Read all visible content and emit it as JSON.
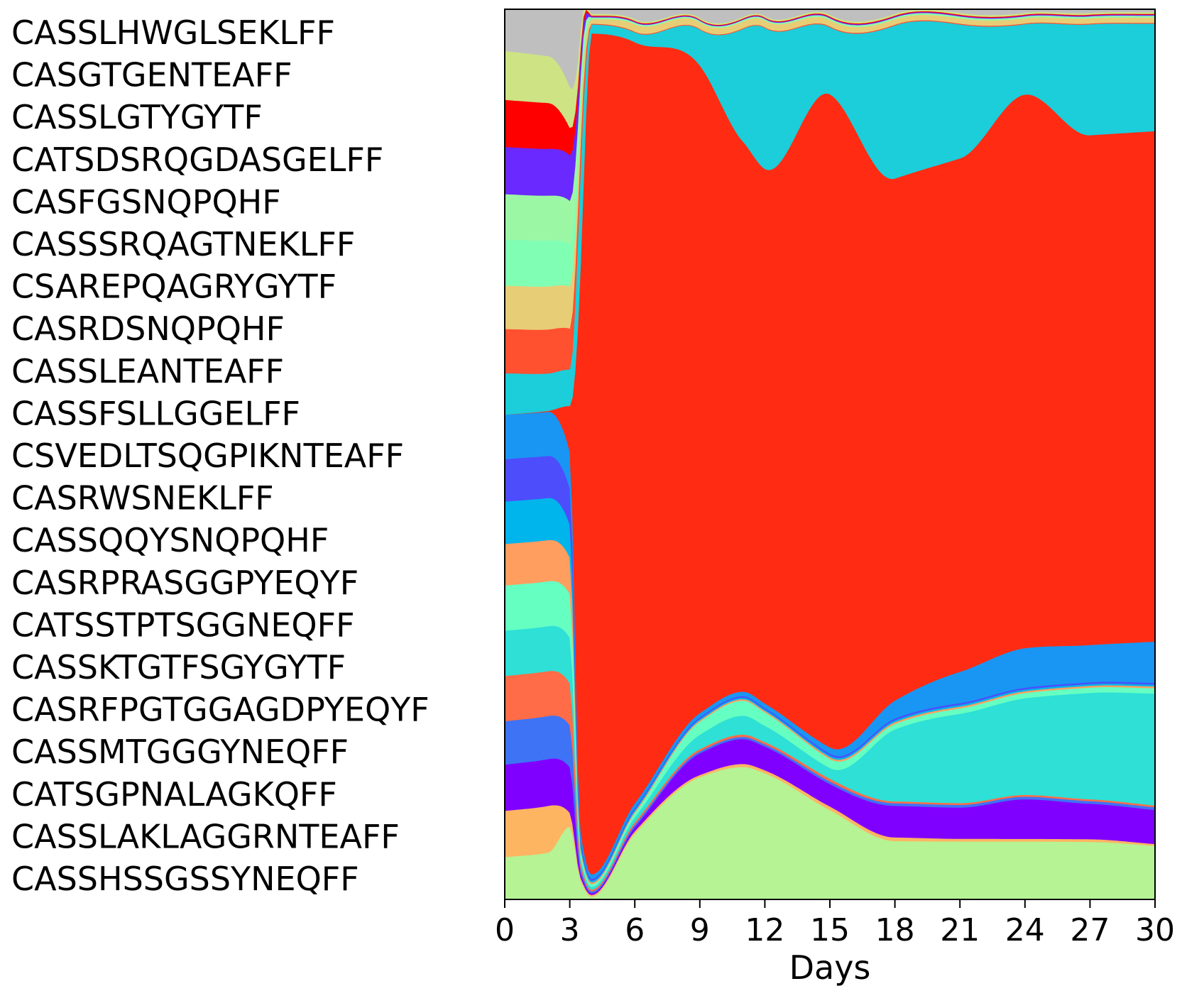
{
  "chart_data": {
    "type": "area",
    "stacked": true,
    "normalized": true,
    "xlabel": "Days",
    "ylabel": "",
    "xlim": [
      0,
      30
    ],
    "ylim": [
      0,
      1
    ],
    "x_ticks": [
      0,
      3,
      6,
      9,
      12,
      15,
      18,
      21,
      24,
      27,
      30
    ],
    "grid": false,
    "legend_position": "left",
    "x": [
      0,
      2,
      3,
      3.5,
      4,
      6,
      9,
      11,
      12,
      15,
      18,
      21,
      24,
      27,
      30
    ],
    "series": [
      {
        "name": "CASSHSSGSSYNEQFF",
        "color": "#b5f394",
        "values": [
          0.045,
          0.05,
          0.08,
          0.02,
          0.003,
          0.08,
          0.17,
          0.176,
          0.17,
          0.1,
          0.065,
          0.065,
          0.066,
          0.065,
          0.06
        ]
      },
      {
        "name": "CASSLAKLAGGRNTEAFF",
        "color": "#fdb562",
        "values": [
          0.049,
          0.05,
          0.015,
          0.003,
          0.002,
          0.003,
          0.003,
          0.004,
          0.004,
          0.004,
          0.004,
          0.003,
          0.003,
          0.003,
          0.002
        ]
      },
      {
        "name": "CATSGPNALAGKQFF",
        "color": "#8000ff",
        "values": [
          0.049,
          0.05,
          0.05,
          0.005,
          0.002,
          0.005,
          0.03,
          0.033,
          0.032,
          0.025,
          0.035,
          0.035,
          0.045,
          0.04,
          0.038
        ]
      },
      {
        "name": "CASSMTGGGYNEQFF",
        "color": "#3e73f6",
        "values": [
          0.046,
          0.046,
          0.046,
          0.005,
          0.002,
          0.003,
          0.003,
          0.003,
          0.003,
          0.003,
          0.003,
          0.003,
          0.003,
          0.003,
          0.003
        ]
      },
      {
        "name": "CASRFPGTGGAGDPYEQYF",
        "color": "#ff6c47",
        "values": [
          0.048,
          0.048,
          0.046,
          0.005,
          0.002,
          0.003,
          0.003,
          0.003,
          0.003,
          0.003,
          0.002,
          0.002,
          0.002,
          0.002,
          0.002
        ]
      },
      {
        "name": "CASSKTGTFSGYGYTF",
        "color": "#2ee0d5",
        "values": [
          0.048,
          0.048,
          0.05,
          0.006,
          0.003,
          0.006,
          0.02,
          0.025,
          0.022,
          0.012,
          0.08,
          0.1,
          0.11,
          0.12,
          0.125
        ]
      },
      {
        "name": "CATSSTPTSGGNEQFF",
        "color": "#66ffc2",
        "values": [
          0.048,
          0.048,
          0.048,
          0.006,
          0.003,
          0.005,
          0.018,
          0.02,
          0.018,
          0.01,
          0.006,
          0.006,
          0.006,
          0.006,
          0.006
        ]
      },
      {
        "name": "CASRPRASGGPYEQYF",
        "color": "#ff9e5e",
        "values": [
          0.044,
          0.044,
          0.04,
          0.004,
          0.002,
          0.002,
          0.002,
          0.002,
          0.002,
          0.002,
          0.002,
          0.002,
          0.002,
          0.002,
          0.002
        ]
      },
      {
        "name": "CASSQQYSNQPQHF",
        "color": "#00b4ec",
        "values": [
          0.045,
          0.045,
          0.036,
          0.004,
          0.002,
          0.002,
          0.002,
          0.002,
          0.002,
          0.002,
          0.002,
          0.002,
          0.002,
          0.002,
          0.002
        ]
      },
      {
        "name": "CASRWSNEKLFF",
        "color": "#4d4dfb",
        "values": [
          0.045,
          0.045,
          0.04,
          0.004,
          0.002,
          0.002,
          0.002,
          0.002,
          0.002,
          0.002,
          0.002,
          0.002,
          0.002,
          0.002,
          0.002
        ]
      },
      {
        "name": "CSVEDLTSQGPIKNTEAFF",
        "color": "#1996f3",
        "values": [
          0.047,
          0.047,
          0.04,
          0.01,
          0.005,
          0.006,
          0.006,
          0.006,
          0.006,
          0.007,
          0.02,
          0.035,
          0.045,
          0.042,
          0.046
        ]
      },
      {
        "name": "CASSFSLLGGELFF",
        "color": "#ff2c13",
        "values": [
          0.0,
          0.001,
          0.05,
          0.6,
          0.94,
          0.925,
          0.9,
          0.73,
          0.72,
          0.73,
          0.58,
          0.575,
          0.63,
          0.575,
          0.57
        ]
      },
      {
        "name": "CASSLEANTEAFF",
        "color": "#1ccdda",
        "values": [
          0.044,
          0.04,
          0.04,
          0.1,
          0.01,
          0.012,
          0.05,
          0.15,
          0.19,
          0.075,
          0.17,
          0.15,
          0.08,
          0.125,
          0.12
        ]
      },
      {
        "name": "CASRDSNQPQHF",
        "color": "#ff5030",
        "values": [
          0.047,
          0.047,
          0.045,
          0.03,
          0.001,
          0.001,
          0.001,
          0.001,
          0.001,
          0.001,
          0.001,
          0.001,
          0.001,
          0.001,
          0.001
        ]
      },
      {
        "name": "CSAREPQAGRYGYTF",
        "color": "#e8cd77",
        "values": [
          0.046,
          0.046,
          0.046,
          0.03,
          0.005,
          0.009,
          0.009,
          0.009,
          0.009,
          0.007,
          0.006,
          0.006,
          0.006,
          0.006,
          0.006
        ]
      },
      {
        "name": "CASSSRQAGTNEKLFF",
        "color": "#80ffb4",
        "values": [
          0.049,
          0.049,
          0.046,
          0.02,
          0.001,
          0.001,
          0.001,
          0.001,
          0.001,
          0.001,
          0.001,
          0.001,
          0.001,
          0.001,
          0.001
        ]
      },
      {
        "name": "CASFGSNQPQHF",
        "color": "#9cf7a4",
        "values": [
          0.048,
          0.048,
          0.048,
          0.02,
          0.001,
          0.001,
          0.001,
          0.001,
          0.001,
          0.001,
          0.001,
          0.001,
          0.001,
          0.001,
          0.001
        ]
      },
      {
        "name": "CATSDSRQGDASGELFF",
        "color": "#6a29ff",
        "values": [
          0.05,
          0.05,
          0.05,
          0.02,
          0.001,
          0.001,
          0.001,
          0.001,
          0.001,
          0.001,
          0.001,
          0.001,
          0.001,
          0.001,
          0.001
        ]
      },
      {
        "name": "CASSLGTYGYTF",
        "color": "#ff0000",
        "values": [
          0.05,
          0.049,
          0.03,
          0.01,
          0.001,
          0.001,
          0.001,
          0.001,
          0.001,
          0.001,
          0.001,
          0.001,
          0.001,
          0.001,
          0.001
        ]
      },
      {
        "name": "CASGTGENTEAFF",
        "color": "#cde384",
        "values": [
          0.052,
          0.05,
          0.045,
          0.02,
          0.002,
          0.002,
          0.002,
          0.002,
          0.002,
          0.002,
          0.002,
          0.002,
          0.002,
          0.002,
          0.002
        ]
      },
      {
        "name": "CASSLHWGLSEKLFF",
        "color": "#bfbfbf",
        "values": [
          0.044,
          0.05,
          0.085,
          0.02,
          0.005,
          0.012,
          0.012,
          0.01,
          0.009,
          0.006,
          0.005,
          0.004,
          0.004,
          0.004,
          0.003
        ]
      }
    ]
  }
}
